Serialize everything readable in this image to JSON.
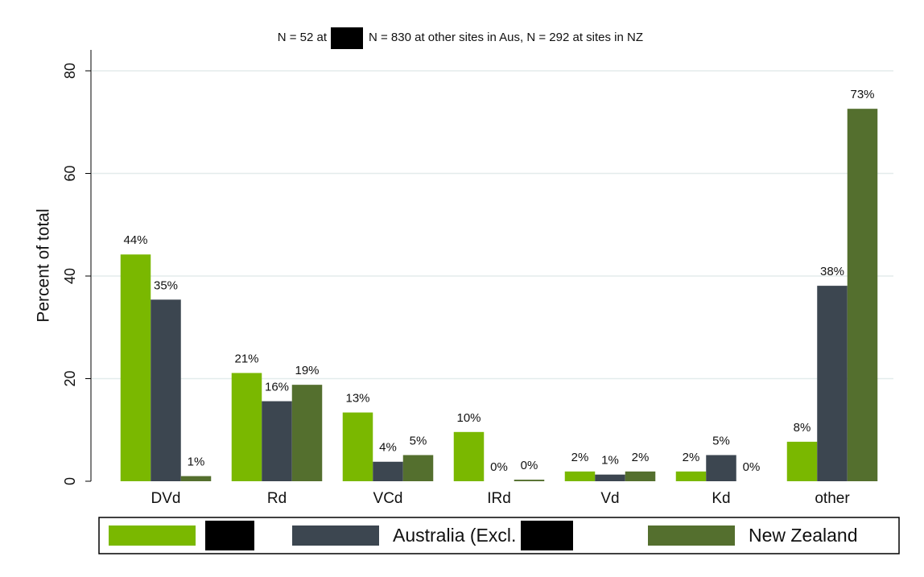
{
  "chart_data": {
    "type": "bar",
    "title": [
      "N = 52 at",
      "N = 830 at other sites in Aus, N = 292 at sites in NZ"
    ],
    "ylabel": "Percent of total",
    "categories": [
      "DVd",
      "Rd",
      "VCd",
      "IRd",
      "Vd",
      "Kd",
      "other"
    ],
    "series": [
      {
        "color": "#7ab800",
        "values": [
          44.2,
          21.1,
          13.4,
          9.6,
          1.9,
          1.9,
          7.7
        ],
        "value_labels": [
          "44%",
          "21%",
          "13%",
          "10%",
          "2%",
          "2%",
          "8%"
        ]
      },
      {
        "name": "Australia (Excl.",
        "color": "#3c4650",
        "values": [
          35.4,
          15.6,
          3.8,
          0,
          1.3,
          5.1,
          38.1
        ],
        "value_labels": [
          "35%",
          "16%",
          "4%",
          "0%",
          "1%",
          "5%",
          "38%"
        ]
      },
      {
        "name": "New Zealand",
        "color": "#546f2e",
        "values": [
          1.0,
          18.8,
          5.1,
          0.3,
          1.9,
          0,
          72.6
        ],
        "value_labels": [
          "1%",
          "19%",
          "5%",
          "0%",
          "2%",
          "0%",
          "73%"
        ]
      }
    ],
    "ylim": [
      0,
      80
    ],
    "yticks": [
      0,
      20,
      40,
      60,
      80
    ],
    "grid": true,
    "legend": "bottom"
  }
}
